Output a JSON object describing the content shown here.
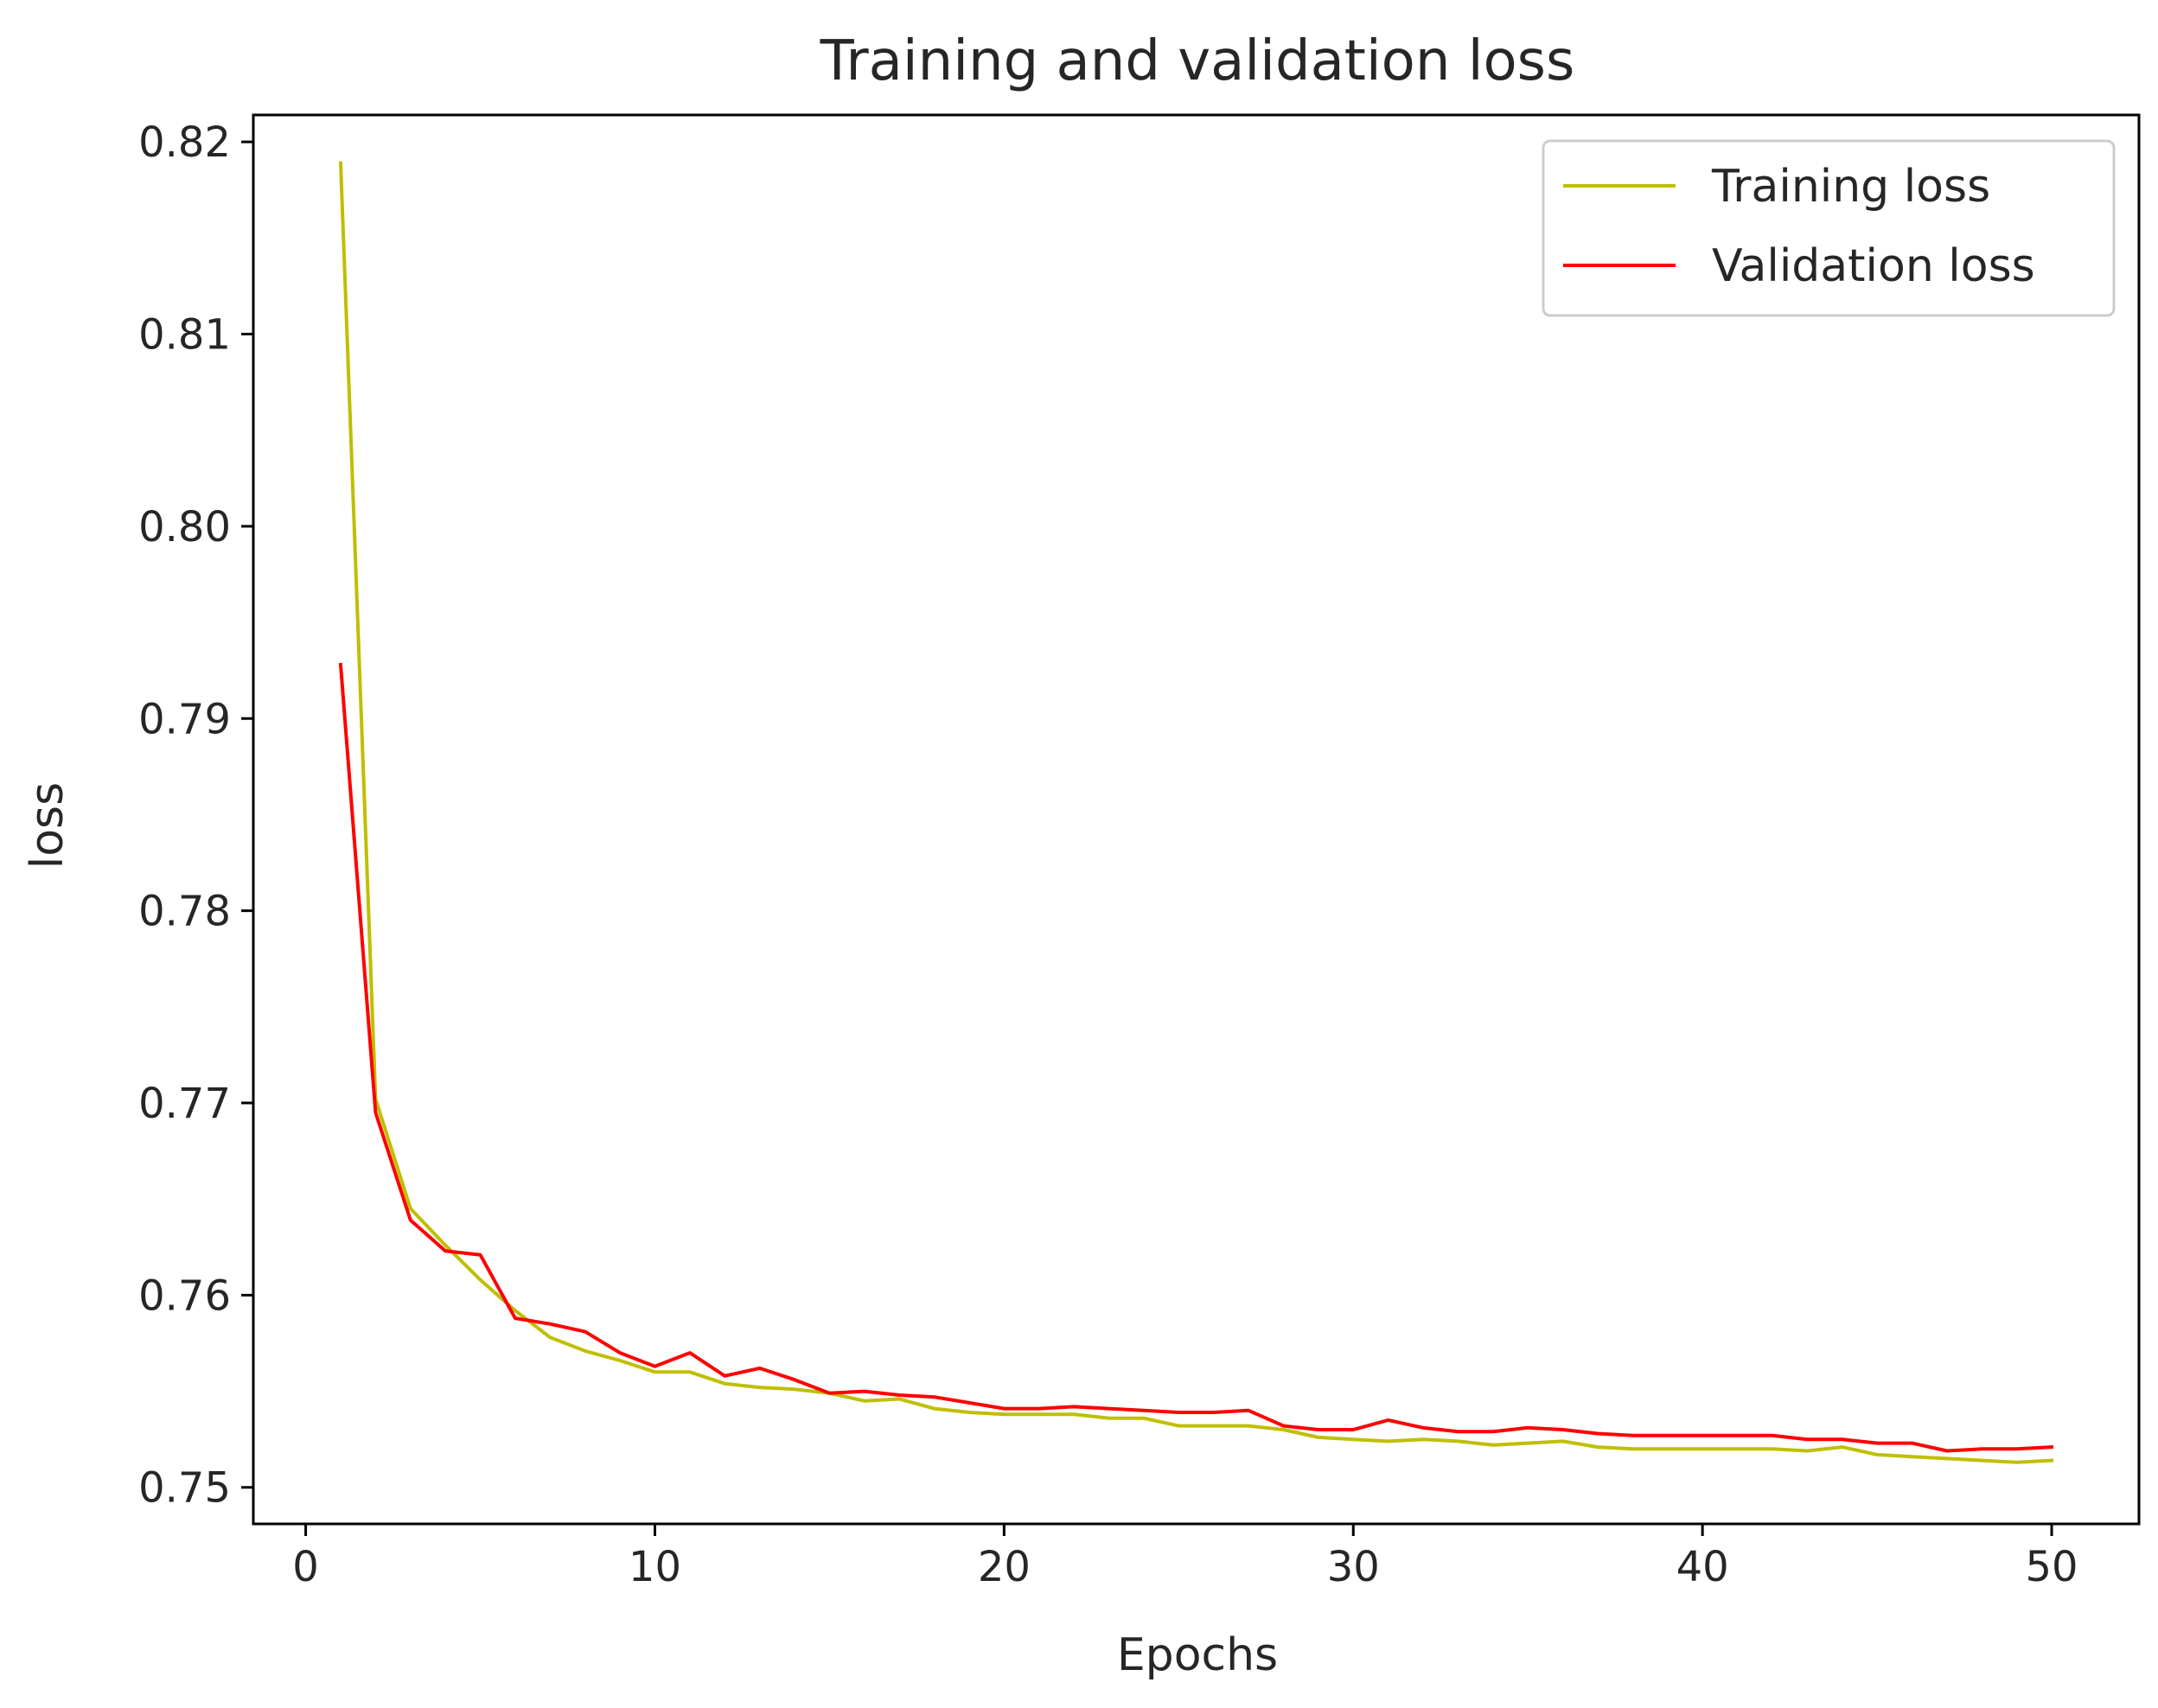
{
  "chart_data": {
    "type": "line",
    "title": "Training and validation loss",
    "xlabel": "Epochs",
    "ylabel": "loss",
    "xlim": [
      -1.5,
      52.5
    ],
    "ylim": [
      0.7481,
      0.8214
    ],
    "xticks": [
      0,
      10,
      20,
      30,
      40,
      50
    ],
    "xtick_labels": [
      "0",
      "10",
      "20",
      "30",
      "40",
      "50"
    ],
    "yticks": [
      0.75,
      0.76,
      0.77,
      0.78,
      0.79,
      0.8,
      0.81,
      0.82
    ],
    "ytick_labels": [
      "0.75",
      "0.76",
      "0.77",
      "0.78",
      "0.79",
      "0.80",
      "0.81",
      "0.82"
    ],
    "grid": false,
    "legend_position": "upper-right",
    "x": [
      1,
      2,
      3,
      4,
      5,
      6,
      7,
      8,
      9,
      10,
      11,
      12,
      13,
      14,
      15,
      16,
      17,
      18,
      19,
      20,
      21,
      22,
      23,
      24,
      25,
      26,
      27,
      28,
      29,
      30,
      31,
      32,
      33,
      34,
      35,
      36,
      37,
      38,
      39,
      40,
      41,
      42,
      43,
      44,
      45,
      46,
      47,
      48,
      49,
      50
    ],
    "series": [
      {
        "name": "Training loss",
        "color": "#bfbf00",
        "values": [
          0.8189,
          0.7702,
          0.7645,
          0.7626,
          0.7608,
          0.7592,
          0.7578,
          0.7571,
          0.7566,
          0.756,
          0.756,
          0.7554,
          0.7552,
          0.7551,
          0.7549,
          0.7545,
          0.7546,
          0.7541,
          0.7539,
          0.7538,
          0.7538,
          0.7538,
          0.7536,
          0.7536,
          0.7532,
          0.7532,
          0.7532,
          0.753,
          0.7526,
          0.7525,
          0.7524,
          0.7525,
          0.7524,
          0.7522,
          0.7523,
          0.7524,
          0.7521,
          0.752,
          0.752,
          0.752,
          0.752,
          0.752,
          0.7519,
          0.7521,
          0.7517,
          0.7516,
          0.7515,
          0.7514,
          0.7513,
          0.7514
        ]
      },
      {
        "name": "Validation loss",
        "color": "#ff0000",
        "values": [
          0.7928,
          0.7695,
          0.7639,
          0.7623,
          0.7621,
          0.7588,
          0.7585,
          0.7581,
          0.757,
          0.7563,
          0.757,
          0.7558,
          0.7562,
          0.7556,
          0.7549,
          0.755,
          0.7548,
          0.7547,
          0.7544,
          0.7541,
          0.7541,
          0.7542,
          0.7541,
          0.754,
          0.7539,
          0.7539,
          0.754,
          0.7532,
          0.753,
          0.753,
          0.7535,
          0.7531,
          0.7529,
          0.7529,
          0.7531,
          0.753,
          0.7528,
          0.7527,
          0.7527,
          0.7527,
          0.7527,
          0.7527,
          0.7525,
          0.7525,
          0.7523,
          0.7523,
          0.7519,
          0.752,
          0.752,
          0.7521
        ]
      }
    ]
  }
}
